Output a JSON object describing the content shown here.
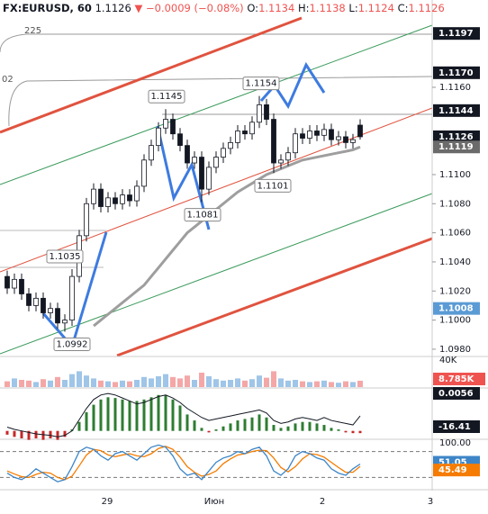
{
  "chart_data": {
    "type": "candlestick",
    "header": {
      "symbol": "FX:EURUSD, 60",
      "last": "1.1126",
      "arrow": "▼",
      "change": "−0.0009 (−0.08%)",
      "o_label": "O:",
      "o": "1.1134",
      "h_label": "H:",
      "h": "1.1138",
      "l_label": "L:",
      "l": "1.1124",
      "c_label": "C:",
      "c": "1.1126"
    },
    "ylim": [
      1.0975,
      1.122
    ],
    "yticks": [
      {
        "value": 1.116,
        "label": "1.1160"
      },
      {
        "value": 1.11,
        "label": "1.1100"
      },
      {
        "value": 1.108,
        "label": "1.1080"
      },
      {
        "value": 1.106,
        "label": "1.1060"
      },
      {
        "value": 1.104,
        "label": "1.1040"
      },
      {
        "value": 1.102,
        "label": "1.1020"
      },
      {
        "value": 1.1,
        "label": "1.1000"
      },
      {
        "value": 1.098,
        "label": "1.0980"
      }
    ],
    "price_badges": [
      {
        "value": 1.1197,
        "label": "1.1197",
        "color": "#131722"
      },
      {
        "value": 1.117,
        "label": "1.1170",
        "color": "#131722"
      },
      {
        "value": 1.1144,
        "label": "1.1144",
        "color": "#131722"
      },
      {
        "value": 1.1126,
        "label": "1.1126",
        "color": "#131722"
      },
      {
        "value": 1.1119,
        "label": "1.1119",
        "color": "#6b6b6b"
      },
      {
        "value": 1.1008,
        "label": "1.1008",
        "color": "#5b9bd5"
      }
    ],
    "x_labels": [
      "29",
      "Июн",
      "2",
      "3"
    ],
    "annotations": [
      1.1145,
      1.1154,
      1.1101,
      1.1081,
      1.1035,
      1.0992
    ],
    "drawing_labels": [
      "225",
      "02"
    ],
    "up_color": "#ffffff",
    "down_color": "#131722",
    "open": [
      1.103,
      1.1022,
      1.1028,
      1.1018,
      1.101,
      1.1015,
      1.1005,
      1.1008,
      1.0998,
      1.1,
      1.103,
      1.1058,
      1.108,
      1.109,
      1.1078,
      1.1084,
      1.108,
      1.1086,
      1.1082,
      1.1092,
      1.111,
      1.112,
      1.1132,
      1.1138,
      1.1128,
      1.112,
      1.1108,
      1.1112,
      1.109,
      1.1105,
      1.1112,
      1.1118,
      1.1122,
      1.113,
      1.1128,
      1.1136,
      1.1148,
      1.1138,
      1.1108,
      1.111,
      1.1115,
      1.1128,
      1.1125,
      1.113,
      1.1127,
      1.1131,
      1.1124,
      1.1126,
      1.1122,
      1.1134
    ],
    "high": [
      1.1034,
      1.1032,
      1.1032,
      1.1022,
      1.1019,
      1.1019,
      1.1012,
      1.1012,
      1.1004,
      1.1035,
      1.1062,
      1.1084,
      1.1094,
      1.1094,
      1.1088,
      1.1088,
      1.109,
      1.109,
      1.1096,
      1.1114,
      1.1124,
      1.1136,
      1.1145,
      1.1142,
      1.1132,
      1.1124,
      1.1116,
      1.1116,
      1.1109,
      1.1116,
      1.1122,
      1.1126,
      1.1134,
      1.1134,
      1.114,
      1.1154,
      1.1152,
      1.1142,
      1.1114,
      1.1119,
      1.1132,
      1.1132,
      1.1134,
      1.1134,
      1.1135,
      1.1135,
      1.113,
      1.113,
      1.1128,
      1.1138
    ],
    "low": [
      1.1018,
      1.1018,
      1.1014,
      1.1006,
      1.1006,
      1.1001,
      1.1001,
      1.0994,
      1.0992,
      1.0996,
      1.1026,
      1.1054,
      1.1076,
      1.1074,
      1.1074,
      1.1076,
      1.1076,
      1.1078,
      1.1078,
      1.1088,
      1.1106,
      1.1116,
      1.1128,
      1.1124,
      1.1116,
      1.1104,
      1.1104,
      1.1081,
      1.1086,
      1.1101,
      1.1108,
      1.1114,
      1.1118,
      1.1124,
      1.1124,
      1.1132,
      1.1134,
      1.1101,
      1.1104,
      1.1106,
      1.1111,
      1.1121,
      1.1121,
      1.1123,
      1.1123,
      1.112,
      1.112,
      1.1118,
      1.1118,
      1.1124
    ],
    "close": [
      1.1022,
      1.1028,
      1.1018,
      1.101,
      1.1015,
      1.1005,
      1.1008,
      1.0998,
      1.1,
      1.103,
      1.1058,
      1.108,
      1.109,
      1.1078,
      1.1084,
      1.108,
      1.1086,
      1.1082,
      1.1092,
      1.111,
      1.112,
      1.1132,
      1.1138,
      1.1128,
      1.112,
      1.1108,
      1.1112,
      1.109,
      1.1105,
      1.1112,
      1.1118,
      1.1122,
      1.113,
      1.1128,
      1.1136,
      1.1148,
      1.1138,
      1.1108,
      1.111,
      1.1115,
      1.1128,
      1.1125,
      1.113,
      1.1127,
      1.1131,
      1.1124,
      1.1126,
      1.1122,
      1.1124,
      1.1126
    ],
    "ma": {
      "color": "#9e9e9e",
      "values": [
        null,
        null,
        null,
        null,
        null,
        null,
        null,
        null,
        null,
        null,
        null,
        null,
        1.0996,
        1.1,
        1.1004,
        1.1008,
        1.1012,
        1.1016,
        1.102,
        1.1024,
        1.103,
        1.1036,
        1.1042,
        1.1048,
        1.1054,
        1.106,
        1.1064,
        1.1068,
        1.1072,
        1.1076,
        1.108,
        1.1084,
        1.1088,
        1.1091,
        1.1094,
        1.1097,
        1.11,
        1.1102,
        1.1104,
        1.1106,
        1.1108,
        1.111,
        1.1111,
        1.1112,
        1.1113,
        1.1114,
        1.1115,
        1.1116,
        1.1117,
        1.1119
      ]
    },
    "volume": {
      "ylim": [
        0,
        40
      ],
      "yticks": [
        {
          "value": 40,
          "label": "40K"
        }
      ],
      "up_color": "#9fc5e8",
      "down_color": "#f4a7a7",
      "values": [
        8,
        12,
        10,
        9,
        7,
        11,
        9,
        14,
        10,
        18,
        22,
        16,
        12,
        9,
        8,
        7,
        9,
        8,
        10,
        14,
        12,
        15,
        18,
        14,
        12,
        16,
        10,
        20,
        15,
        11,
        9,
        10,
        12,
        9,
        11,
        16,
        13,
        22,
        12,
        9,
        10,
        8,
        7,
        8,
        9,
        7,
        6,
        8,
        7,
        8.785
      ],
      "last_label": "8.785K",
      "last_color": "#ef5350"
    },
    "macd": {
      "ylim": [
        -10,
        55
      ],
      "pos_color": "#2e7d32",
      "neg_color": "#c62828",
      "line_color": "#131722",
      "histogram": [
        -5,
        -8,
        -10,
        -12,
        -10,
        -12,
        -10,
        -12,
        -8,
        2,
        12,
        25,
        35,
        42,
        45,
        44,
        42,
        40,
        40,
        42,
        45,
        48,
        48,
        42,
        34,
        22,
        14,
        4,
        -2,
        2,
        6,
        10,
        14,
        16,
        18,
        22,
        18,
        8,
        4,
        6,
        10,
        12,
        12,
        10,
        8,
        4,
        2,
        -2,
        -3,
        -3
      ],
      "line": [
        5,
        2,
        0,
        -2,
        -4,
        -5,
        -6,
        -8,
        -6,
        0,
        15,
        30,
        42,
        48,
        50,
        48,
        44,
        40,
        36,
        38,
        42,
        46,
        48,
        44,
        38,
        30,
        24,
        18,
        14,
        16,
        18,
        20,
        22,
        24,
        26,
        28,
        24,
        14,
        10,
        12,
        16,
        18,
        16,
        14,
        18,
        14,
        12,
        10,
        8,
        20
      ],
      "badges": [
        "0.0056",
        "-16.41"
      ]
    },
    "stoch": {
      "ylim": [
        0,
        100
      ],
      "yticks": [
        {
          "value": 100,
          "label": "100.00"
        }
      ],
      "levels": [
        80,
        20
      ],
      "k": {
        "color": "#3d85c6",
        "values": [
          30,
          20,
          15,
          25,
          40,
          30,
          20,
          10,
          15,
          45,
          80,
          90,
          85,
          70,
          60,
          75,
          80,
          70,
          60,
          75,
          90,
          95,
          90,
          70,
          40,
          25,
          30,
          15,
          35,
          55,
          65,
          70,
          80,
          75,
          85,
          90,
          70,
          35,
          25,
          40,
          70,
          80,
          75,
          65,
          60,
          40,
          30,
          25,
          40,
          51.05
        ],
        "value_label": "51.05"
      },
      "d": {
        "color": "#f57c00",
        "values": [
          35,
          28,
          22,
          20,
          27,
          32,
          30,
          20,
          15,
          23,
          47,
          72,
          85,
          82,
          72,
          68,
          72,
          75,
          70,
          68,
          75,
          87,
          92,
          85,
          67,
          45,
          32,
          23,
          27,
          35,
          52,
          63,
          72,
          75,
          80,
          83,
          82,
          65,
          43,
          33,
          45,
          63,
          75,
          73,
          67,
          55,
          43,
          32,
          32,
          45.49
        ],
        "value_label": "45.49"
      }
    }
  }
}
